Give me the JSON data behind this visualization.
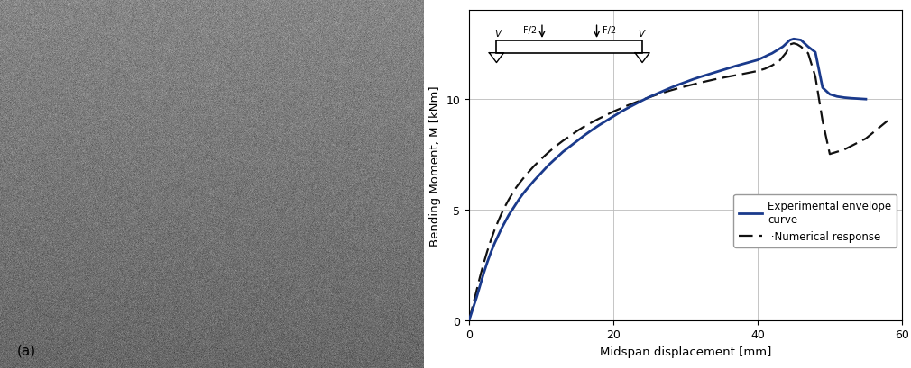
{
  "title": "",
  "ylabel": "Bending Moment, M [kNm]",
  "xlabel": "Midspan displacement [mm]",
  "xlim": [
    0,
    60
  ],
  "ylim": [
    0,
    14
  ],
  "yticks": [
    0,
    5,
    10
  ],
  "xticks": [
    0,
    20,
    40,
    60
  ],
  "exp_color": "#1a3a8c",
  "num_color": "#111111",
  "exp_x": [
    0,
    0.5,
    1.0,
    1.5,
    2.0,
    2.5,
    3.0,
    3.5,
    4.0,
    4.5,
    5.0,
    5.5,
    6.0,
    6.5,
    7.0,
    7.5,
    8.0,
    9.0,
    10.0,
    11.0,
    12.0,
    13.0,
    14.0,
    15.0,
    16.0,
    17.0,
    18.0,
    19.0,
    20.0,
    21.0,
    22.0,
    23.0,
    24.0,
    25.0,
    26.0,
    27.0,
    28.0,
    29.0,
    30.0,
    31.0,
    32.0,
    33.0,
    34.0,
    35.0,
    36.0,
    37.0,
    38.0,
    39.0,
    40.0,
    41.0,
    41.5,
    42.0,
    42.5,
    43.0,
    43.5,
    44.0,
    44.3,
    44.5,
    45.0,
    46.0,
    47.0,
    48.0,
    49.0,
    50.0,
    51.0,
    52.0,
    53.0,
    54.0,
    55.0
  ],
  "exp_y": [
    0,
    0.5,
    1.0,
    1.55,
    2.1,
    2.6,
    3.05,
    3.45,
    3.8,
    4.15,
    4.45,
    4.75,
    5.0,
    5.25,
    5.5,
    5.72,
    5.92,
    6.3,
    6.65,
    7.0,
    7.3,
    7.6,
    7.85,
    8.1,
    8.35,
    8.58,
    8.8,
    9.0,
    9.2,
    9.4,
    9.58,
    9.75,
    9.92,
    10.08,
    10.22,
    10.36,
    10.5,
    10.63,
    10.75,
    10.87,
    10.98,
    11.08,
    11.18,
    11.28,
    11.38,
    11.48,
    11.57,
    11.66,
    11.75,
    11.9,
    11.98,
    12.05,
    12.15,
    12.25,
    12.35,
    12.5,
    12.6,
    12.65,
    12.7,
    12.65,
    12.35,
    12.1,
    10.5,
    10.2,
    10.1,
    10.05,
    10.02,
    10.0,
    9.98
  ],
  "num_x": [
    0,
    0.5,
    1.0,
    1.5,
    2.0,
    2.5,
    3.0,
    3.5,
    4.0,
    4.5,
    5.0,
    5.5,
    6.0,
    6.5,
    7.0,
    8.0,
    9.0,
    10.0,
    11.0,
    12.0,
    13.0,
    14.0,
    15.0,
    16.0,
    17.0,
    18.0,
    19.0,
    20.0,
    22.0,
    24.0,
    26.0,
    28.0,
    30.0,
    32.0,
    34.0,
    36.0,
    38.0,
    40.0,
    41.0,
    42.0,
    43.0,
    43.5,
    44.0,
    44.3,
    44.5,
    45.0,
    45.5,
    46.0,
    47.0,
    48.0,
    49.0,
    50.0,
    51.0,
    52.0,
    55.0,
    58.0
  ],
  "num_y": [
    0,
    0.65,
    1.3,
    1.95,
    2.55,
    3.1,
    3.6,
    4.05,
    4.45,
    4.82,
    5.15,
    5.45,
    5.72,
    5.98,
    6.2,
    6.6,
    6.96,
    7.28,
    7.58,
    7.85,
    8.1,
    8.32,
    8.55,
    8.75,
    8.93,
    9.1,
    9.26,
    9.42,
    9.7,
    9.95,
    10.18,
    10.38,
    10.56,
    10.72,
    10.87,
    11.0,
    11.12,
    11.25,
    11.35,
    11.5,
    11.7,
    11.9,
    12.1,
    12.35,
    12.45,
    12.5,
    12.45,
    12.35,
    12.05,
    11.0,
    9.0,
    7.5,
    7.6,
    7.7,
    8.2,
    9.0
  ],
  "legend_exp": "Experimental envelope\ncurve",
  "legend_num": " ·Numerical response",
  "grid": true,
  "background_color": "#ffffff",
  "photo_color": "#7a7a7a"
}
